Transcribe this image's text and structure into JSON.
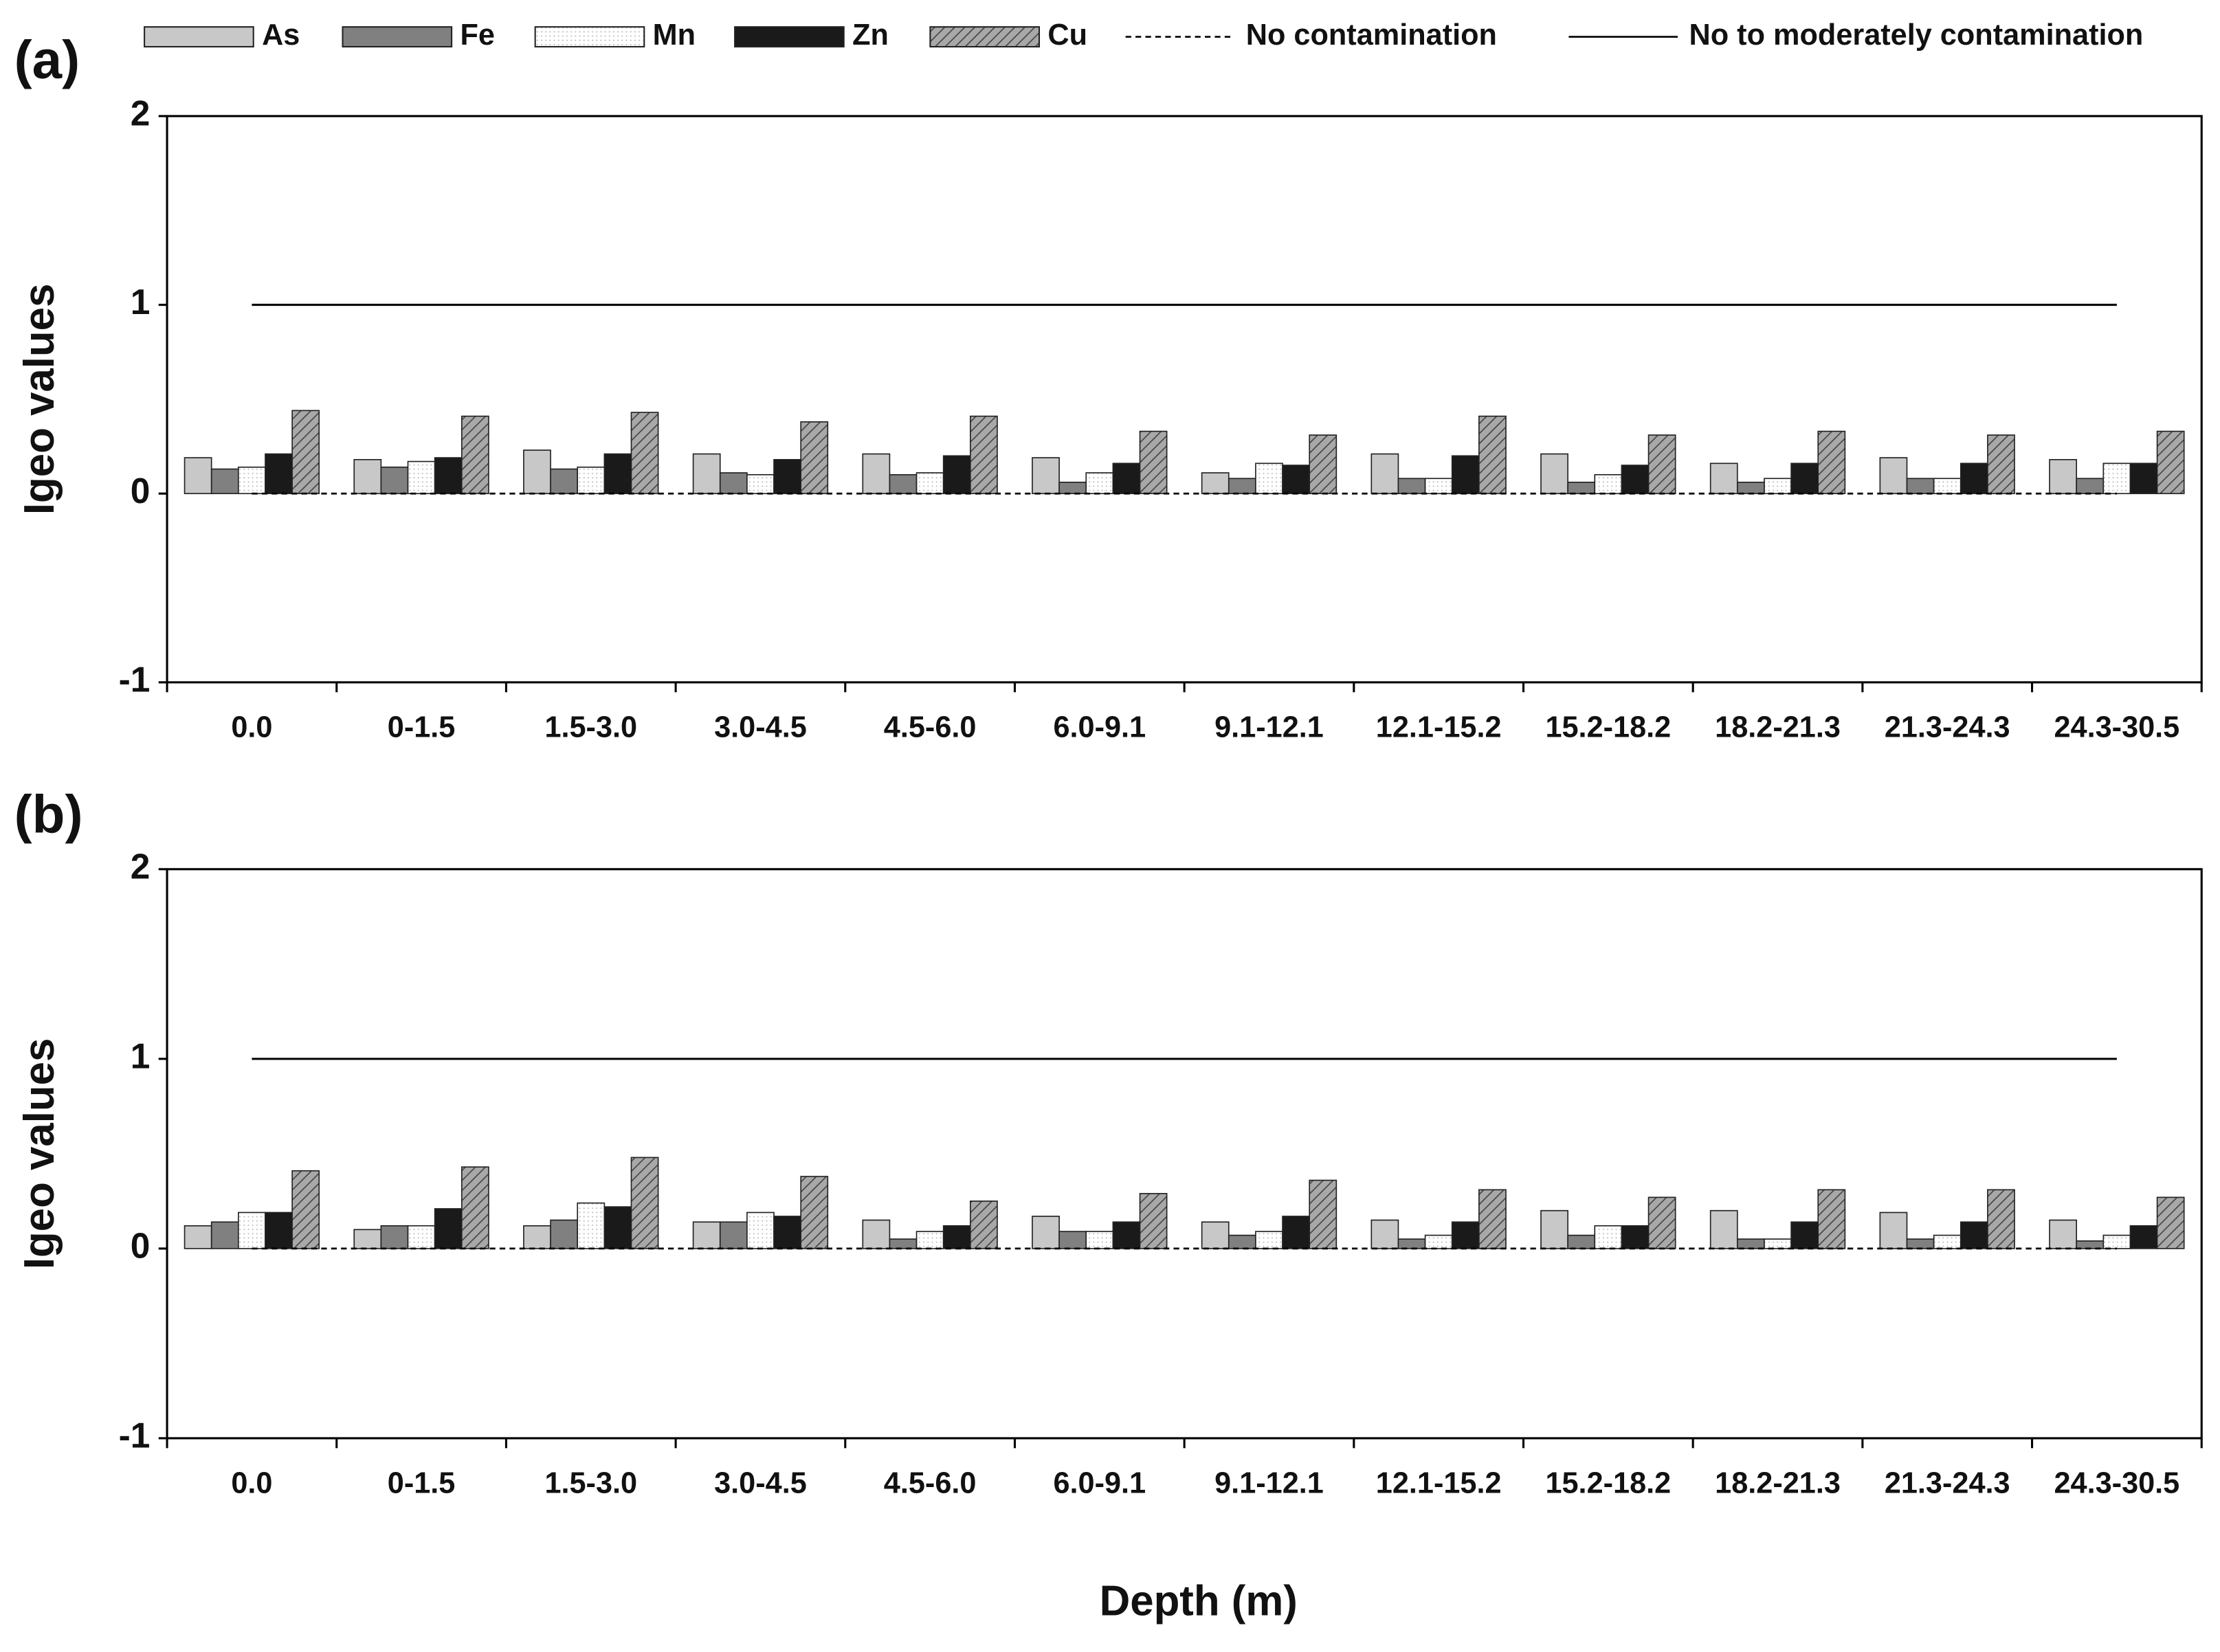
{
  "chart_data": [
    {
      "type": "bar",
      "panel_label": "(a)",
      "ylabel": "Igeo values",
      "legend": "top",
      "categories": [
        "0.0",
        "0-1.5",
        "1.5-3.0",
        "3.0-4.5",
        "4.5-6.0",
        "6.0-9.1",
        "9.1-12.1",
        "12.1-15.2",
        "15.2-18.2",
        "18.2-21.3",
        "21.3-24.3",
        "24.3-30.5"
      ],
      "series": [
        {
          "name": "As",
          "color": "#c8c8c8",
          "values": [
            0.19,
            0.18,
            0.23,
            0.21,
            0.21,
            0.19,
            0.11,
            0.21,
            0.21,
            0.16,
            0.19,
            0.18
          ]
        },
        {
          "name": "Fe",
          "color": "#808080",
          "values": [
            0.13,
            0.14,
            0.13,
            0.11,
            0.1,
            0.06,
            0.08,
            0.08,
            0.06,
            0.06,
            0.08,
            0.08
          ]
        },
        {
          "name": "Mn",
          "color": "#ffffff",
          "pattern": "dots",
          "values": [
            0.14,
            0.17,
            0.14,
            0.1,
            0.11,
            0.11,
            0.16,
            0.08,
            0.1,
            0.08,
            0.08,
            0.16
          ]
        },
        {
          "name": "Zn",
          "color": "#1a1a1a",
          "values": [
            0.21,
            0.19,
            0.21,
            0.18,
            0.2,
            0.16,
            0.15,
            0.2,
            0.15,
            0.16,
            0.16,
            0.16
          ]
        },
        {
          "name": "Cu",
          "color": "#a8a8a8",
          "pattern": "hatch",
          "values": [
            0.44,
            0.41,
            0.43,
            0.38,
            0.41,
            0.33,
            0.31,
            0.41,
            0.31,
            0.33,
            0.31,
            0.33
          ]
        }
      ],
      "reference_lines": [
        {
          "value": 0,
          "label": "No contamination",
          "dash": true
        },
        {
          "value": 1,
          "label": "No to moderately contamination",
          "dash": false
        }
      ],
      "ylim": [
        -1,
        2
      ],
      "yticks": [
        -1,
        0,
        1,
        2
      ]
    },
    {
      "type": "bar",
      "panel_label": "(b)",
      "ylabel": "Igeo values",
      "xlabel": "Depth (m)",
      "categories": [
        "0.0",
        "0-1.5",
        "1.5-3.0",
        "3.0-4.5",
        "4.5-6.0",
        "6.0-9.1",
        "9.1-12.1",
        "12.1-15.2",
        "15.2-18.2",
        "18.2-21.3",
        "21.3-24.3",
        "24.3-30.5"
      ],
      "series": [
        {
          "name": "As",
          "color": "#c8c8c8",
          "values": [
            0.12,
            0.1,
            0.12,
            0.14,
            0.15,
            0.17,
            0.14,
            0.15,
            0.2,
            0.2,
            0.19,
            0.15
          ]
        },
        {
          "name": "Fe",
          "color": "#808080",
          "values": [
            0.14,
            0.12,
            0.15,
            0.14,
            0.05,
            0.09,
            0.07,
            0.05,
            0.07,
            0.05,
            0.05,
            0.04
          ]
        },
        {
          "name": "Mn",
          "color": "#ffffff",
          "pattern": "dots",
          "values": [
            0.19,
            0.12,
            0.24,
            0.19,
            0.09,
            0.09,
            0.09,
            0.07,
            0.12,
            0.05,
            0.07,
            0.07
          ]
        },
        {
          "name": "Zn",
          "color": "#1a1a1a",
          "values": [
            0.19,
            0.21,
            0.22,
            0.17,
            0.12,
            0.14,
            0.17,
            0.14,
            0.12,
            0.14,
            0.14,
            0.12
          ]
        },
        {
          "name": "Cu",
          "color": "#a8a8a8",
          "pattern": "hatch",
          "values": [
            0.41,
            0.43,
            0.48,
            0.38,
            0.25,
            0.29,
            0.36,
            0.31,
            0.27,
            0.31,
            0.31,
            0.27
          ]
        }
      ],
      "reference_lines": [
        {
          "value": 0,
          "label": "No contamination",
          "dash": true
        },
        {
          "value": 1,
          "label": "No to moderately contamination",
          "dash": false
        }
      ],
      "ylim": [
        -1,
        2
      ],
      "yticks": [
        -1,
        0,
        1,
        2
      ]
    }
  ]
}
